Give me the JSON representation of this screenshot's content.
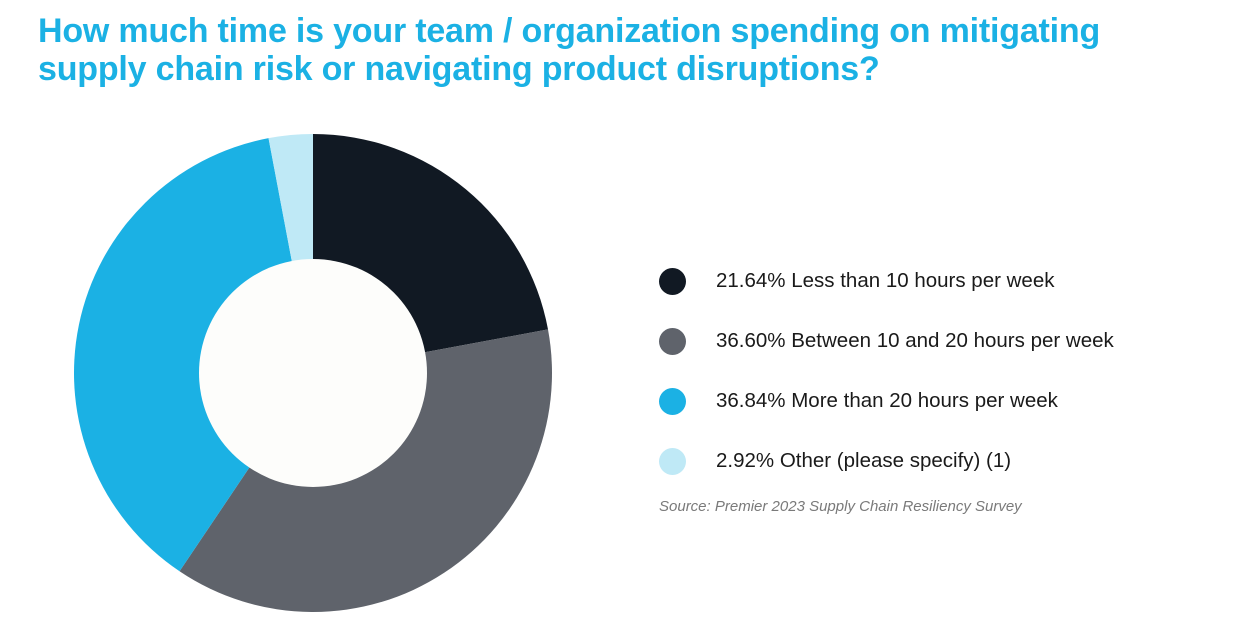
{
  "title_lines": [
    "How much time is your team / organization spending on mitigating",
    "supply chain risk or navigating product disruptions?"
  ],
  "chart_data": {
    "type": "pie",
    "donut": true,
    "slices": [
      {
        "label": "21.64% Less than 10 hours per week",
        "value": 21.64,
        "color": "#111923"
      },
      {
        "label": "36.60% Between 10 and 20 hours per week",
        "value": 36.6,
        "color": "#5f636b"
      },
      {
        "label": "36.84% More than 20 hours per week",
        "value": 36.84,
        "color": "#1bb1e4"
      },
      {
        "label": "2.92% Other (please specify) (1)",
        "value": 2.92,
        "color": "#bfe9f6"
      }
    ],
    "legend_position": "right"
  },
  "source": "Source: Premier 2023 Supply Chain Resiliency Survey"
}
